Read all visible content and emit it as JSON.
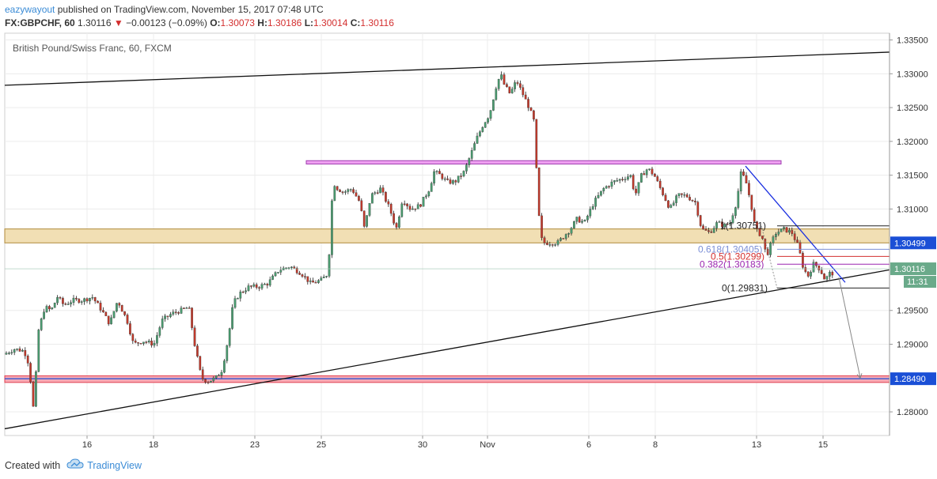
{
  "header": {
    "author": "eazywayout",
    "published": "published on TradingView.com, November 15, 2017 07:48 UTC",
    "symbol": "FX:GBPCHF, 60",
    "last": "1.30116",
    "arrow": "▼",
    "change": "−0.00123 (−0.09%)",
    "o_label": "O:",
    "o_value": "1.30073",
    "h_label": "H:",
    "h_value": "1.30186",
    "l_label": "L:",
    "l_value": "1.30014",
    "c_label": "C:",
    "c_value": "1.30116"
  },
  "footer": {
    "created_with": "Created with",
    "brand": "TradingView"
  },
  "colors": {
    "up": "#4a9b6f",
    "down": "#c0392b",
    "wick": "#222222",
    "price_badge": "#6aaa8a",
    "blue_level": "#1a4fd6"
  },
  "chart_data": {
    "type": "candlestick",
    "title": "British Pound/Swiss Franc, 60, FXCM",
    "x_labels": [
      "16",
      "18",
      "23",
      "25",
      "30",
      "Nov",
      "6",
      "8",
      "13",
      "15"
    ],
    "y_ticks": [
      "1.33500",
      "1.33000",
      "1.32500",
      "1.32000",
      "1.31500",
      "1.31000",
      "1.30499",
      "1.30116",
      "1.29500",
      "1.29000",
      "1.28490",
      "1.28000"
    ],
    "ylim": [
      1.2765,
      1.336
    ],
    "grid": true,
    "price_labels": {
      "level": "1.30499",
      "current": "1.30116",
      "countdown": "11:31",
      "target": "1.28490"
    },
    "path": [
      [
        0,
        1.288
      ],
      [
        8,
        1.2885
      ],
      [
        22,
        1.2893
      ],
      [
        34,
        1.289
      ],
      [
        40,
        1.287
      ],
      [
        46,
        1.28
      ],
      [
        52,
        1.292
      ],
      [
        60,
        1.2955
      ],
      [
        68,
        1.295
      ],
      [
        76,
        1.297
      ],
      [
        84,
        1.2958
      ],
      [
        96,
        1.2965
      ],
      [
        108,
        1.2965
      ],
      [
        120,
        1.297
      ],
      [
        132,
        1.295
      ],
      [
        142,
        1.293
      ],
      [
        152,
        1.2965
      ],
      [
        164,
        1.2935
      ],
      [
        172,
        1.29
      ],
      [
        184,
        1.2905
      ],
      [
        198,
        1.29
      ],
      [
        208,
        1.2935
      ],
      [
        220,
        1.2945
      ],
      [
        232,
        1.295
      ],
      [
        242,
        1.2955
      ],
      [
        250,
        1.2895
      ],
      [
        258,
        1.285
      ],
      [
        266,
        1.2845
      ],
      [
        276,
        1.285
      ],
      [
        284,
        1.2862
      ],
      [
        292,
        1.291
      ],
      [
        298,
        1.296
      ],
      [
        306,
        1.2975
      ],
      [
        318,
        1.2985
      ],
      [
        330,
        1.2985
      ],
      [
        342,
        1.299
      ],
      [
        356,
        1.301
      ],
      [
        370,
        1.3015
      ],
      [
        384,
        1.3005
      ],
      [
        396,
        1.299
      ],
      [
        410,
        1.2995
      ],
      [
        418,
        1.3005
      ],
      [
        421,
        1.307
      ],
      [
        424,
        1.314
      ],
      [
        430,
        1.313
      ],
      [
        438,
        1.3125
      ],
      [
        448,
        1.313
      ],
      [
        458,
        1.311
      ],
      [
        464,
        1.307
      ],
      [
        472,
        1.312
      ],
      [
        484,
        1.313
      ],
      [
        496,
        1.31
      ],
      [
        504,
        1.307
      ],
      [
        512,
        1.3115
      ],
      [
        522,
        1.31
      ],
      [
        534,
        1.3105
      ],
      [
        546,
        1.313
      ],
      [
        552,
        1.3155
      ],
      [
        560,
        1.315
      ],
      [
        568,
        1.314
      ],
      [
        578,
        1.314
      ],
      [
        590,
        1.3155
      ],
      [
        598,
        1.318
      ],
      [
        606,
        1.3205
      ],
      [
        614,
        1.3225
      ],
      [
        622,
        1.324
      ],
      [
        630,
        1.328
      ],
      [
        636,
        1.33
      ],
      [
        640,
        1.3285
      ],
      [
        648,
        1.327
      ],
      [
        656,
        1.329
      ],
      [
        664,
        1.327
      ],
      [
        672,
        1.325
      ],
      [
        678,
        1.323
      ],
      [
        682,
        1.314
      ],
      [
        686,
        1.306
      ],
      [
        690,
        1.305
      ],
      [
        698,
        1.305
      ],
      [
        708,
        1.305
      ],
      [
        716,
        1.306
      ],
      [
        724,
        1.307
      ],
      [
        732,
        1.3085
      ],
      [
        742,
        1.308
      ],
      [
        754,
        1.311
      ],
      [
        766,
        1.313
      ],
      [
        778,
        1.314
      ],
      [
        790,
        1.3145
      ],
      [
        800,
        1.315
      ],
      [
        806,
        1.312
      ],
      [
        814,
        1.315
      ],
      [
        822,
        1.316
      ],
      [
        830,
        1.315
      ],
      [
        840,
        1.3125
      ],
      [
        850,
        1.31
      ],
      [
        860,
        1.312
      ],
      [
        870,
        1.312
      ],
      [
        882,
        1.311
      ],
      [
        890,
        1.307
      ],
      [
        900,
        1.3065
      ],
      [
        910,
        1.308
      ],
      [
        918,
        1.3075
      ],
      [
        926,
        1.308
      ],
      [
        934,
        1.311
      ],
      [
        940,
        1.3155
      ],
      [
        946,
        1.314
      ],
      [
        952,
        1.311
      ],
      [
        958,
        1.307
      ],
      [
        966,
        1.306
      ],
      [
        972,
        1.303
      ],
      [
        978,
        1.305
      ],
      [
        984,
        1.3065
      ],
      [
        994,
        1.307
      ],
      [
        1004,
        1.3065
      ],
      [
        1012,
        1.3045
      ],
      [
        1018,
        1.3015
      ],
      [
        1024,
        1.3
      ],
      [
        1032,
        1.302
      ],
      [
        1040,
        1.301
      ],
      [
        1046,
        1.2995
      ],
      [
        1052,
        1.3005
      ]
    ],
    "annotations": {
      "fib_levels": [
        {
          "label": "1(1.30751)",
          "value": 1.30751,
          "color": "#222222"
        },
        {
          "label": "0.618(1.30405)",
          "value": 1.30405,
          "color": "#7b8fd6"
        },
        {
          "label": "0.5(1.30299)",
          "value": 1.30299,
          "color": "#d32f2f"
        },
        {
          "label": "0.382(1.30183)",
          "value": 1.30183,
          "color": "#9c27b0"
        },
        {
          "label": "0(1.29831)",
          "value": 1.29831,
          "color": "#222222"
        }
      ]
    }
  }
}
